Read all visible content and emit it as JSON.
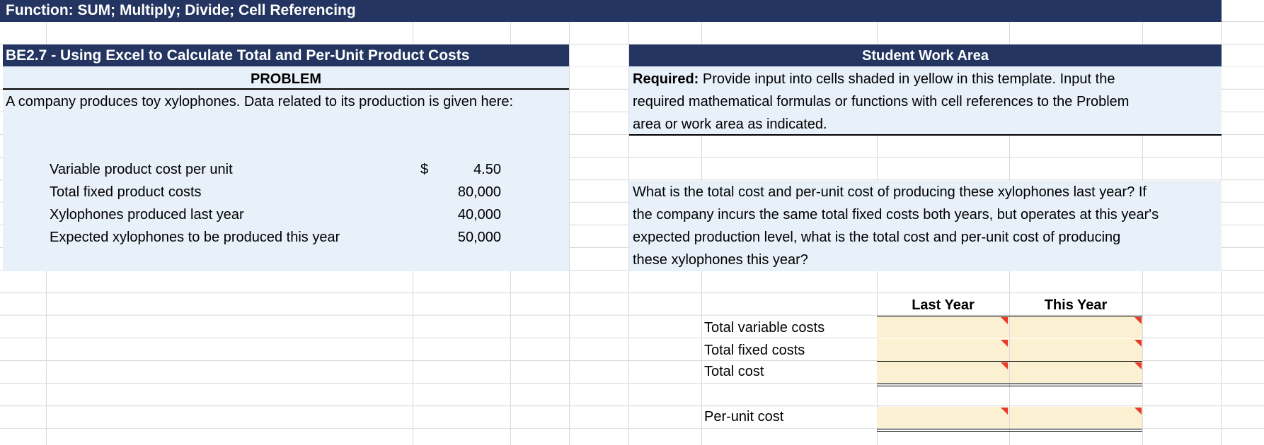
{
  "title_bar": "Function: SUM; Multiply; Divide; Cell Referencing",
  "problem": {
    "section_title": "BE2.7 - Using Excel to Calculate Total and Per-Unit Product Costs",
    "header": "PROBLEM",
    "intro": "A company produces toy xylophones. Data related to its production is given here:",
    "currency_symbol": "$",
    "rows": [
      {
        "label": "Variable product cost per unit",
        "value": "4.50"
      },
      {
        "label": "Total fixed product costs",
        "value": "80,000"
      },
      {
        "label": "Xylophones produced last year",
        "value": "40,000"
      },
      {
        "label": "Expected xylophones to be produced this year",
        "value": "50,000"
      }
    ]
  },
  "work_area": {
    "header": "Student Work Area",
    "required_label": "Required:",
    "required_text_1": " Provide input into cells shaded in yellow in this template. Input the",
    "required_text_2": "required mathematical formulas or functions with cell references to the Problem",
    "required_text_3": "area or work area as indicated.",
    "question_1": "What is the total cost and per-unit cost of producing these xylophones last year? If",
    "question_2": "the company incurs the same total fixed costs both years, but operates at this year's",
    "question_3": "expected production level, what is the total cost and per-unit cost of producing",
    "question_4": "these xylophones this year?",
    "col_last_year": "Last Year",
    "col_this_year": "This Year",
    "rows": {
      "total_variable": "Total variable costs",
      "total_fixed": "Total fixed costs",
      "total_cost": "Total cost",
      "per_unit": "Per-unit cost"
    }
  },
  "colors": {
    "header_navy": "#233560",
    "problem_fill": "#e8f0fa",
    "input_fill": "#fcf0d3",
    "comment_marker": "#e8392a"
  }
}
